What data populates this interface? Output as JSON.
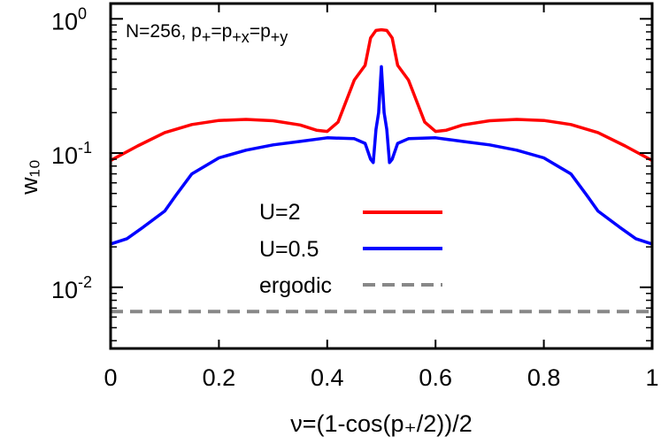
{
  "chart_data": {
    "type": "line",
    "xlabel": "ν=(1-cos(p₊/2))/2",
    "ylabel": "w₁₀",
    "xlim": [
      0,
      1
    ],
    "ylim": [
      0.0035,
      1.3
    ],
    "yscale": "log",
    "xticks": [
      "0",
      "0.2",
      "0.4",
      "0.6",
      "0.8",
      "1"
    ],
    "xtick_values": [
      0,
      0.2,
      0.4,
      0.6,
      0.8,
      1
    ],
    "yticks": [
      {
        "value": 1,
        "base": "10",
        "exp": "0"
      },
      {
        "value": 0.1,
        "base": "10",
        "exp": "-1"
      },
      {
        "value": 0.01,
        "base": "10",
        "exp": "-2"
      }
    ],
    "annotation": {
      "main": "N=256, p",
      "s1": "+",
      "eq1": "=p",
      "s2": "+x",
      "eq2": "=p",
      "s3": "+y"
    },
    "legend_position": "center",
    "series": [
      {
        "name": "U=2",
        "color": "#ff0000",
        "x": [
          0,
          0.05,
          0.1,
          0.15,
          0.2,
          0.25,
          0.3,
          0.35,
          0.38,
          0.4,
          0.42,
          0.45,
          0.47,
          0.48,
          0.49,
          0.5,
          0.51,
          0.52,
          0.53,
          0.55,
          0.58,
          0.6,
          0.62,
          0.65,
          0.7,
          0.75,
          0.8,
          0.85,
          0.9,
          0.95,
          1
        ],
        "y": [
          0.088,
          0.113,
          0.142,
          0.163,
          0.175,
          0.178,
          0.174,
          0.162,
          0.148,
          0.145,
          0.17,
          0.35,
          0.45,
          0.72,
          0.82,
          0.83,
          0.82,
          0.72,
          0.45,
          0.35,
          0.17,
          0.145,
          0.148,
          0.162,
          0.174,
          0.178,
          0.175,
          0.163,
          0.142,
          0.113,
          0.088
        ]
      },
      {
        "name": "U=0.5",
        "color": "#0000ff",
        "x": [
          0,
          0.03,
          0.06,
          0.1,
          0.12,
          0.15,
          0.2,
          0.25,
          0.3,
          0.35,
          0.4,
          0.45,
          0.47,
          0.48,
          0.485,
          0.49,
          0.495,
          0.5,
          0.505,
          0.51,
          0.515,
          0.52,
          0.53,
          0.55,
          0.6,
          0.65,
          0.7,
          0.75,
          0.8,
          0.85,
          0.88,
          0.9,
          0.94,
          0.97,
          1
        ],
        "y": [
          0.021,
          0.023,
          0.028,
          0.037,
          0.048,
          0.07,
          0.092,
          0.105,
          0.115,
          0.122,
          0.13,
          0.128,
          0.118,
          0.09,
          0.085,
          0.15,
          0.2,
          0.44,
          0.2,
          0.15,
          0.085,
          0.09,
          0.118,
          0.128,
          0.13,
          0.122,
          0.115,
          0.105,
          0.092,
          0.07,
          0.048,
          0.037,
          0.028,
          0.023,
          0.021
        ]
      },
      {
        "name": "ergodic",
        "color": "#888888",
        "dashed": true,
        "x": [
          0,
          1
        ],
        "y": [
          0.0066,
          0.0066
        ]
      }
    ]
  }
}
